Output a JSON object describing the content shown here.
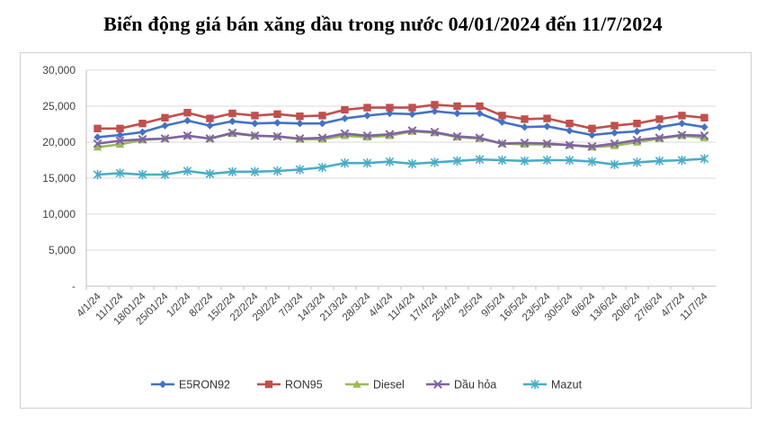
{
  "chart_data": {
    "type": "line",
    "title": "Biến động giá bán xăng dầu trong nước 04/01/2024 đến 11/7/2024",
    "xlabel": "",
    "ylabel": "",
    "ylim": [
      0,
      30000
    ],
    "yticks": [
      {
        "value": 0,
        "label": "-"
      },
      {
        "value": 5000,
        "label": "5,000"
      },
      {
        "value": 10000,
        "label": "10,000"
      },
      {
        "value": 15000,
        "label": "15,000"
      },
      {
        "value": 20000,
        "label": "20,000"
      },
      {
        "value": 25000,
        "label": "25,000"
      },
      {
        "value": 30000,
        "label": "30,000"
      }
    ],
    "grid": "horizontal",
    "legend_position": "bottom",
    "categories": [
      "4/1/24",
      "11/1/24",
      "18/01/24",
      "25/01/24",
      "1/2/24",
      "8/2/24",
      "15/2/24",
      "22/2/24",
      "29/2/24",
      "7/3/24",
      "14/3/24",
      "21/3/24",
      "28/3/24",
      "4/4/24",
      "11/4/24",
      "17/4/24",
      "25/4/24",
      "2/5/24",
      "9/5/24",
      "16/5/24",
      "23/5/24",
      "30/5/24",
      "6/6/24",
      "13/6/24",
      "20/6/24",
      "27/6/24",
      "4/7/24",
      "11/7/24"
    ],
    "series": [
      {
        "name": "E5RON92",
        "color": "#4472C4",
        "marker": "diamond",
        "values": [
          20700,
          21000,
          21400,
          22300,
          23000,
          22300,
          22900,
          22600,
          22700,
          22600,
          22600,
          23300,
          23700,
          24000,
          23900,
          24300,
          24000,
          24000,
          22800,
          22100,
          22200,
          21600,
          21000,
          21300,
          21500,
          22100,
          22600,
          22100
        ]
      },
      {
        "name": "RON95",
        "color": "#C0504D",
        "marker": "square",
        "values": [
          21900,
          21900,
          22600,
          23400,
          24100,
          23300,
          24000,
          23700,
          23900,
          23600,
          23700,
          24500,
          24800,
          24800,
          24800,
          25200,
          25000,
          25000,
          23700,
          23200,
          23300,
          22600,
          21900,
          22300,
          22600,
          23200,
          23700,
          23400
        ]
      },
      {
        "name": "Diesel",
        "color": "#9BBB59",
        "marker": "triangle",
        "values": [
          19300,
          19700,
          20300,
          20500,
          20900,
          20500,
          21200,
          20900,
          20800,
          20400,
          20400,
          20900,
          20700,
          20900,
          21500,
          21300,
          20700,
          20500,
          19800,
          19700,
          19700,
          19600,
          19300,
          19500,
          20000,
          20500,
          20900,
          20600
        ]
      },
      {
        "name": "Dầu hỏa",
        "color": "#8064A2",
        "marker": "x",
        "values": [
          19800,
          20200,
          20400,
          20500,
          20900,
          20500,
          21300,
          20900,
          20800,
          20500,
          20600,
          21200,
          20900,
          21100,
          21600,
          21400,
          20800,
          20600,
          19800,
          19900,
          19800,
          19600,
          19400,
          19800,
          20300,
          20600,
          21000,
          20900
        ]
      },
      {
        "name": "Mazut",
        "color": "#4BACC6",
        "marker": "star",
        "values": [
          15500,
          15700,
          15500,
          15500,
          16000,
          15600,
          15900,
          15900,
          16000,
          16200,
          16500,
          17100,
          17100,
          17300,
          17000,
          17200,
          17400,
          17600,
          17500,
          17400,
          17500,
          17500,
          17300,
          16900,
          17200,
          17400,
          17500,
          17700
        ]
      }
    ]
  }
}
